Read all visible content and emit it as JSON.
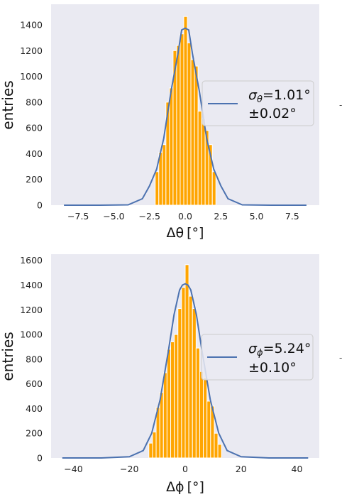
{
  "chart_data": [
    {
      "type": "histogram",
      "xlabel_symbol": "Δθ",
      "xlabel_unit": "[°]",
      "ylabel": "entries",
      "xlim": [
        -9.4,
        9.4
      ],
      "ylim": [
        0,
        1560
      ],
      "xticks": [
        -7.5,
        -5.0,
        -2.5,
        0.0,
        2.5,
        5.0,
        7.5
      ],
      "xtick_labels": [
        "−7.5",
        "−5.0",
        "−2.5",
        "0.0",
        "2.5",
        "5.0",
        "7.5"
      ],
      "yticks": [
        0,
        200,
        400,
        600,
        800,
        1000,
        1200,
        1400
      ],
      "bars": {
        "bin_edges": [
          -2.1,
          -1.85,
          -1.6,
          -1.35,
          -1.1,
          -0.85,
          -0.6,
          -0.35,
          -0.1,
          0.15,
          0.4,
          0.65,
          0.9,
          1.15,
          1.4,
          1.65,
          1.9,
          2.15
        ],
        "counts": [
          260,
          410,
          470,
          800,
          910,
          1200,
          1240,
          1330,
          1465,
          1260,
          1130,
          1080,
          730,
          670,
          580,
          470,
          260
        ]
      },
      "fit_curve": {
        "x": [
          -8.5,
          -6,
          -4,
          -3,
          -2.5,
          -2,
          -1.5,
          -1,
          -0.5,
          -0.25,
          0,
          0.25,
          0.5,
          1,
          1.5,
          2,
          2.5,
          3,
          4,
          6,
          8.5
        ],
        "y": [
          0,
          0,
          3,
          50,
          150,
          280,
          520,
          880,
          1180,
          1360,
          1375,
          1360,
          1180,
          880,
          520,
          280,
          150,
          50,
          3,
          0,
          0
        ]
      },
      "legend": {
        "symbol": "σ",
        "subscript": "θ",
        "value": "=1.01°",
        "error": "±0.02°",
        "placement": "center-right"
      },
      "colors": {
        "bars": "#ffa500",
        "curve": "#4c72b0",
        "plot_bg": "#eaeaf2"
      }
    },
    {
      "type": "histogram",
      "xlabel_symbol": "Δϕ",
      "xlabel_unit": "[°]",
      "ylabel": "entries",
      "xlim": [
        -48,
        48
      ],
      "ylim": [
        0,
        1650
      ],
      "xticks": [
        -40,
        -20,
        0,
        20,
        40
      ],
      "xtick_labels": [
        "−40",
        "−20",
        "0",
        "20",
        "40"
      ],
      "yticks": [
        0,
        200,
        400,
        600,
        800,
        1000,
        1200,
        1400,
        1600
      ],
      "bars": {
        "bin_edges": [
          -13,
          -11.7,
          -10.4,
          -9.1,
          -7.8,
          -6.5,
          -5.2,
          -3.9,
          -2.6,
          -1.3,
          0,
          1.3,
          2.6,
          3.9,
          5.2,
          6.5,
          7.8,
          9.1,
          10.4,
          11.7,
          13
        ],
        "counts": [
          120,
          210,
          410,
          530,
          690,
          880,
          940,
          1000,
          1210,
          1380,
          1565,
          1310,
          1210,
          890,
          700,
          650,
          460,
          420,
          200,
          110
        ]
      },
      "fit_curve": {
        "x": [
          -44,
          -30,
          -20,
          -15,
          -12,
          -9,
          -6,
          -4,
          -2,
          -1,
          0,
          1,
          2,
          4,
          6,
          9,
          12,
          15,
          20,
          30,
          44
        ],
        "y": [
          0,
          0,
          10,
          60,
          200,
          470,
          870,
          1160,
          1360,
          1400,
          1410,
          1400,
          1360,
          1160,
          870,
          470,
          200,
          60,
          10,
          0,
          0
        ]
      },
      "legend": {
        "symbol": "σ",
        "subscript": "ϕ",
        "value": "=5.24°",
        "error": "±0.10°",
        "placement": "center-right"
      },
      "colors": {
        "bars": "#ffa500",
        "curve": "#4c72b0",
        "plot_bg": "#eaeaf2"
      }
    }
  ]
}
